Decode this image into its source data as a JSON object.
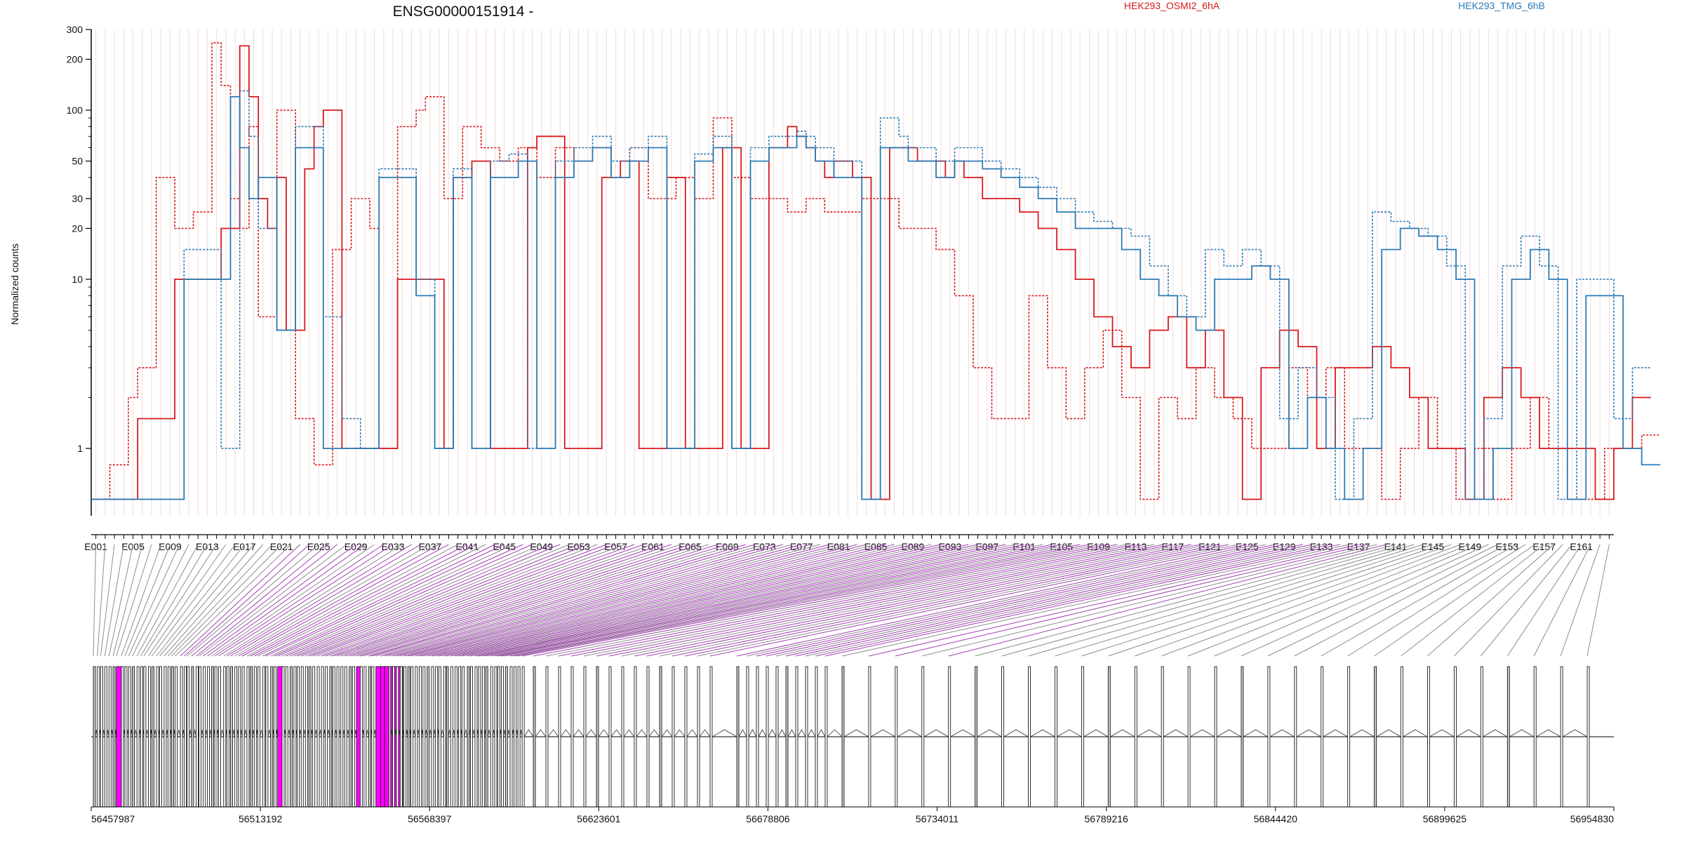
{
  "title": "ENSG00000151914 -",
  "ylabel": "Normalized counts",
  "legend": [
    {
      "name": "HEK293_OSMI2_6hA",
      "color": "#d7191c"
    },
    {
      "name": "HEK293_TMG_6hB",
      "color": "#2c7bb6"
    }
  ],
  "colors": {
    "highlight": "#ff00ff",
    "connector_grey": "#8c8c8c",
    "connector_purple": "#a040b0",
    "grid": "#f2dada"
  },
  "chart_data": {
    "type": "line",
    "yscale": "log",
    "ylim": [
      0.4,
      300
    ],
    "yticks": [
      1,
      10,
      20,
      30,
      50,
      100,
      200,
      300
    ],
    "exon_count": 164,
    "exon_labels": [
      "E001",
      "E005",
      "E009",
      "E013",
      "E017",
      "E021",
      "E025",
      "E029",
      "E033",
      "E037",
      "E041",
      "E045",
      "E049",
      "E053",
      "E057",
      "E061",
      "E065",
      "E069",
      "E073",
      "E077",
      "E081",
      "E085",
      "E089",
      "E093",
      "E097",
      "E101",
      "E105",
      "E109",
      "E113",
      "E117",
      "E121",
      "E125",
      "E129",
      "E133",
      "E137",
      "E141",
      "E145",
      "E149",
      "E153",
      "E157",
      "E161"
    ],
    "series": [
      {
        "name": "HEK293_OSMI2_6hA",
        "color": "#d7191c",
        "dashed": false,
        "values": [
          0.5,
          0.5,
          0.5,
          0.5,
          0.5,
          1.5,
          1.5,
          1.5,
          1.5,
          10,
          10,
          10,
          10,
          10,
          20,
          20,
          240,
          120,
          30,
          20,
          40,
          5,
          5,
          45,
          80,
          100,
          100,
          1,
          1,
          1,
          1,
          1,
          1,
          10,
          10,
          10,
          10,
          10,
          1,
          40,
          40,
          50,
          50,
          1,
          1,
          1,
          1,
          60,
          70,
          70,
          70,
          1,
          1,
          1,
          1,
          40,
          40,
          50,
          50,
          1,
          1,
          1,
          40,
          40,
          1,
          1,
          1,
          1,
          60,
          60,
          1,
          1,
          1,
          60,
          60,
          80,
          70,
          60,
          50,
          40,
          50,
          50,
          40,
          40,
          0.5,
          0.5,
          60,
          60,
          60,
          50,
          50,
          50,
          40,
          50,
          40,
          40,
          30,
          30,
          30,
          30,
          25,
          25,
          20,
          20,
          15,
          15,
          10,
          10,
          6,
          6,
          4,
          4,
          3,
          3,
          5,
          5,
          6,
          6,
          3,
          3,
          5,
          5,
          2,
          2,
          0.5,
          0.5,
          3,
          3,
          5,
          5,
          4,
          4,
          1,
          1,
          3,
          3,
          3,
          3,
          4,
          4,
          3,
          3,
          2,
          2,
          1,
          1,
          1,
          1,
          0.5,
          0.5,
          2,
          2,
          3,
          3,
          2,
          2,
          1,
          1,
          1,
          1,
          1,
          1,
          0.5,
          0.5,
          1,
          1,
          2,
          2
        ]
      },
      {
        "name": "HEK293_OSMI2_6hA",
        "color": "#d7191c",
        "dashed": true,
        "values": [
          0.5,
          0.5,
          0.8,
          0.8,
          2,
          3,
          3,
          40,
          40,
          20,
          20,
          25,
          25,
          250,
          140,
          30,
          20,
          80,
          6,
          6,
          100,
          100,
          1.5,
          1.5,
          0.8,
          0.8,
          15,
          15,
          30,
          30,
          20,
          1,
          1,
          80,
          80,
          100,
          120,
          120,
          30,
          30,
          80,
          80,
          60,
          60,
          50,
          50,
          60,
          60,
          40,
          40,
          60,
          60,
          50,
          50,
          60,
          60,
          40,
          40,
          60,
          60,
          30,
          30,
          30,
          40,
          40,
          30,
          30,
          90,
          90,
          40,
          40,
          30,
          30,
          30,
          30,
          25,
          25,
          30,
          30,
          25,
          25,
          25,
          25,
          30,
          30,
          30,
          30,
          20,
          20,
          20,
          20,
          15,
          15,
          8,
          8,
          3,
          3,
          1.5,
          1.5,
          1.5,
          1.5,
          8,
          8,
          3,
          3,
          1.5,
          1.5,
          3,
          3,
          5,
          5,
          2,
          2,
          0.5,
          0.5,
          2,
          2,
          1.5,
          1.5,
          3,
          3,
          2,
          2,
          1.5,
          1.5,
          1,
          1,
          1,
          1,
          3,
          3,
          2,
          2,
          3,
          3,
          1,
          1,
          1,
          1,
          0.5,
          0.5,
          1,
          1,
          2,
          2,
          1,
          1,
          0.5,
          0.5,
          1,
          1,
          0.5,
          0.5,
          1,
          1,
          2,
          2,
          1,
          1,
          0.5,
          0.5,
          0.5,
          0.5,
          1,
          1,
          1,
          1,
          1.2,
          1.2
        ]
      },
      {
        "name": "HEK293_TMG_6hB",
        "color": "#2c7bb6",
        "dashed": false,
        "values": [
          0.5,
          0.5,
          0.5,
          0.5,
          0.5,
          0.5,
          0.5,
          0.5,
          0.5,
          0.5,
          10,
          10,
          10,
          10,
          10,
          120,
          60,
          30,
          40,
          40,
          5,
          5,
          60,
          60,
          60,
          1,
          1,
          1,
          1,
          1,
          1,
          40,
          40,
          40,
          40,
          8,
          8,
          1,
          1,
          40,
          40,
          1,
          1,
          40,
          40,
          40,
          50,
          50,
          1,
          1,
          40,
          40,
          50,
          50,
          60,
          60,
          40,
          40,
          50,
          50,
          60,
          60,
          1,
          1,
          1,
          50,
          50,
          60,
          60,
          1,
          1,
          50,
          50,
          60,
          60,
          60,
          70,
          60,
          50,
          50,
          40,
          40,
          40,
          0.5,
          0.5,
          60,
          60,
          60,
          50,
          50,
          50,
          40,
          40,
          50,
          50,
          50,
          45,
          45,
          40,
          40,
          35,
          35,
          30,
          30,
          25,
          25,
          20,
          20,
          20,
          20,
          20,
          15,
          15,
          10,
          10,
          8,
          8,
          6,
          6,
          5,
          5,
          10,
          10,
          10,
          10,
          12,
          12,
          10,
          10,
          1,
          1,
          2,
          2,
          1,
          1,
          0.5,
          0.5,
          1,
          1,
          15,
          15,
          20,
          20,
          18,
          18,
          15,
          15,
          10,
          10,
          0.5,
          0.5,
          1,
          1,
          10,
          10,
          15,
          15,
          10,
          10,
          0.5,
          0.5,
          8,
          8,
          8,
          8,
          1,
          1,
          0.8,
          0.8
        ]
      },
      {
        "name": "HEK293_TMG_6hB",
        "color": "#2c7bb6",
        "dashed": true,
        "values": [
          0.5,
          0.5,
          0.5,
          0.5,
          0.5,
          0.5,
          0.5,
          0.5,
          0.5,
          0.5,
          15,
          15,
          15,
          15,
          1,
          1,
          130,
          70,
          20,
          20,
          5,
          5,
          80,
          80,
          80,
          6,
          6,
          1.5,
          1.5,
          1,
          1,
          45,
          45,
          45,
          45,
          10,
          10,
          1,
          1,
          45,
          45,
          1,
          1,
          50,
          50,
          55,
          55,
          1,
          1,
          1,
          50,
          50,
          60,
          60,
          70,
          70,
          50,
          50,
          60,
          60,
          70,
          70,
          1,
          1,
          1,
          55,
          55,
          70,
          70,
          1,
          1,
          60,
          60,
          70,
          70,
          70,
          75,
          70,
          60,
          60,
          50,
          50,
          50,
          0.5,
          0.5,
          90,
          90,
          70,
          60,
          60,
          60,
          50,
          50,
          60,
          60,
          60,
          50,
          50,
          45,
          45,
          40,
          40,
          35,
          35,
          30,
          30,
          25,
          25,
          22,
          22,
          20,
          20,
          18,
          18,
          12,
          12,
          8,
          8,
          6,
          6,
          15,
          15,
          12,
          12,
          15,
          15,
          12,
          12,
          1.5,
          1.5,
          3,
          3,
          2,
          2,
          0.5,
          0.5,
          1.5,
          1.5,
          25,
          25,
          22,
          22,
          20,
          20,
          18,
          18,
          12,
          12,
          0.5,
          0.5,
          1.5,
          1.5,
          12,
          12,
          18,
          18,
          12,
          12,
          0.5,
          0.5,
          10,
          10,
          10,
          10,
          1.5,
          1.5,
          3,
          3
        ]
      }
    ],
    "genomic_ticks": [
      "56457987",
      "56513192",
      "56568397",
      "56623601",
      "56678806",
      "56734011",
      "56789216",
      "56844420",
      "56899625",
      "56954830"
    ]
  }
}
